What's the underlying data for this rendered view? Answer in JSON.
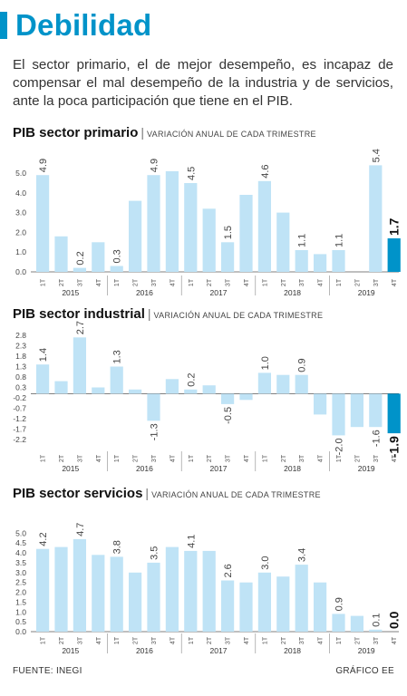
{
  "header": {
    "title": "Debilidad"
  },
  "intro": "El sector primario, el de mejor desempeño, es incapaz de compensar el mal desempeño de la industria y de servicios, ante la poca participación que tiene en el PIB.",
  "colors": {
    "accent": "#0093c9",
    "bar": "#bfe3f6",
    "bar_last": "#0093c9",
    "axis": "#555555"
  },
  "footer": {
    "source": "FUENTE: INEGI",
    "credit": "GRÁFICO EE"
  },
  "chart_data": [
    {
      "type": "bar",
      "title": "PIB sector primario",
      "subtitle": "VARIACIÓN ANUAL DE CADA TRIMESTRE",
      "quarters": [
        "1T",
        "2T",
        "3T",
        "4T",
        "1T",
        "2T",
        "3T",
        "4T",
        "1T",
        "2T",
        "3T",
        "4T",
        "1T",
        "2T",
        "3T",
        "4T",
        "1T",
        "2T",
        "3T",
        "4T"
      ],
      "years": [
        "2015",
        "2016",
        "2017",
        "2018",
        "2019"
      ],
      "values": [
        4.9,
        1.8,
        0.2,
        1.5,
        0.3,
        3.6,
        4.9,
        5.1,
        4.5,
        3.2,
        1.5,
        3.9,
        4.6,
        3.0,
        1.1,
        0.9,
        1.1,
        0.0,
        5.4,
        1.7
      ],
      "labels": [
        "4.9",
        "",
        "0.2",
        "",
        "0.3",
        "",
        "4.9",
        "",
        "4.5",
        "",
        "1.5",
        "",
        "4.6",
        "",
        "1.1",
        "",
        "1.1",
        "",
        "5.4",
        "1.7"
      ],
      "yticks": [
        "5.0",
        "4.0",
        "3.0",
        "2.0",
        "1.0",
        "0.0"
      ],
      "ytick_values": [
        5,
        4,
        3,
        2,
        1,
        0
      ],
      "ylim": [
        0,
        5.6
      ]
    },
    {
      "type": "bar",
      "title": "PIB sector industrial",
      "subtitle": "VARIACIÓN ANUAL DE CADA TRIMESTRE",
      "quarters": [
        "1T",
        "2T",
        "3T",
        "4T",
        "1T",
        "2T",
        "3T",
        "4T",
        "1T",
        "2T",
        "3T",
        "4T",
        "1T",
        "2T",
        "3T",
        "4T",
        "1T",
        "2T",
        "3T",
        "4T"
      ],
      "years": [
        "2015",
        "2016",
        "2017",
        "2018",
        "2019"
      ],
      "values": [
        1.4,
        0.6,
        2.7,
        0.3,
        1.3,
        0.2,
        -1.3,
        0.7,
        0.2,
        0.4,
        -0.5,
        -0.3,
        1.0,
        0.9,
        0.9,
        -1.0,
        -2.0,
        -1.6,
        -1.6,
        -1.9
      ],
      "labels": [
        "1.4",
        "",
        "2.7",
        "",
        "1.3",
        "",
        "-1.3",
        "",
        "0.2",
        "",
        "-0.5",
        "",
        "1.0",
        "",
        "0.9",
        "",
        "-2.0",
        "",
        "-1.6",
        "-1.9"
      ],
      "yticks": [
        "2.8",
        "2.3",
        "1.8",
        "1.3",
        "0.8",
        "0.3",
        "-0.2",
        "-0.7",
        "-1.2",
        "-1.7",
        "-2.2"
      ],
      "ytick_values": [
        2.8,
        2.3,
        1.8,
        1.3,
        0.8,
        0.3,
        -0.2,
        -0.7,
        -1.2,
        -1.7,
        -2.2
      ],
      "ylim": [
        -2.2,
        2.8
      ]
    },
    {
      "type": "bar",
      "title": "PIB sector servicios",
      "subtitle": "VARIACIÓN ANUAL DE CADA TRIMESTRE",
      "quarters": [
        "1T",
        "2T",
        "3T",
        "4T",
        "1T",
        "2T",
        "3T",
        "4T",
        "1T",
        "2T",
        "3T",
        "4T",
        "1T",
        "2T",
        "3T",
        "4T",
        "1T",
        "2T",
        "3T",
        "4T"
      ],
      "years": [
        "2015",
        "2016",
        "2017",
        "2018",
        "2019"
      ],
      "values": [
        4.2,
        4.3,
        4.7,
        3.9,
        3.8,
        3.0,
        3.5,
        4.3,
        4.1,
        4.1,
        2.6,
        2.5,
        3.0,
        2.8,
        3.4,
        2.5,
        0.9,
        0.8,
        0.1,
        0.0
      ],
      "labels": [
        "4.2",
        "",
        "4.7",
        "",
        "3.8",
        "",
        "3.5",
        "",
        "4.1",
        "",
        "2.6",
        "",
        "3.0",
        "",
        "3.4",
        "",
        "0.9",
        "",
        "0.1",
        "0.0"
      ],
      "yticks": [
        "5.0",
        "4.5",
        "4.0",
        "3.5",
        "3.0",
        "2.5",
        "2.0",
        "1.5",
        "1.0",
        "0.5",
        "0.0"
      ],
      "ytick_values": [
        5.0,
        4.5,
        4.0,
        3.5,
        3.0,
        2.5,
        2.0,
        1.5,
        1.0,
        0.5,
        0.0
      ],
      "ylim": [
        0,
        5.2
      ]
    }
  ]
}
